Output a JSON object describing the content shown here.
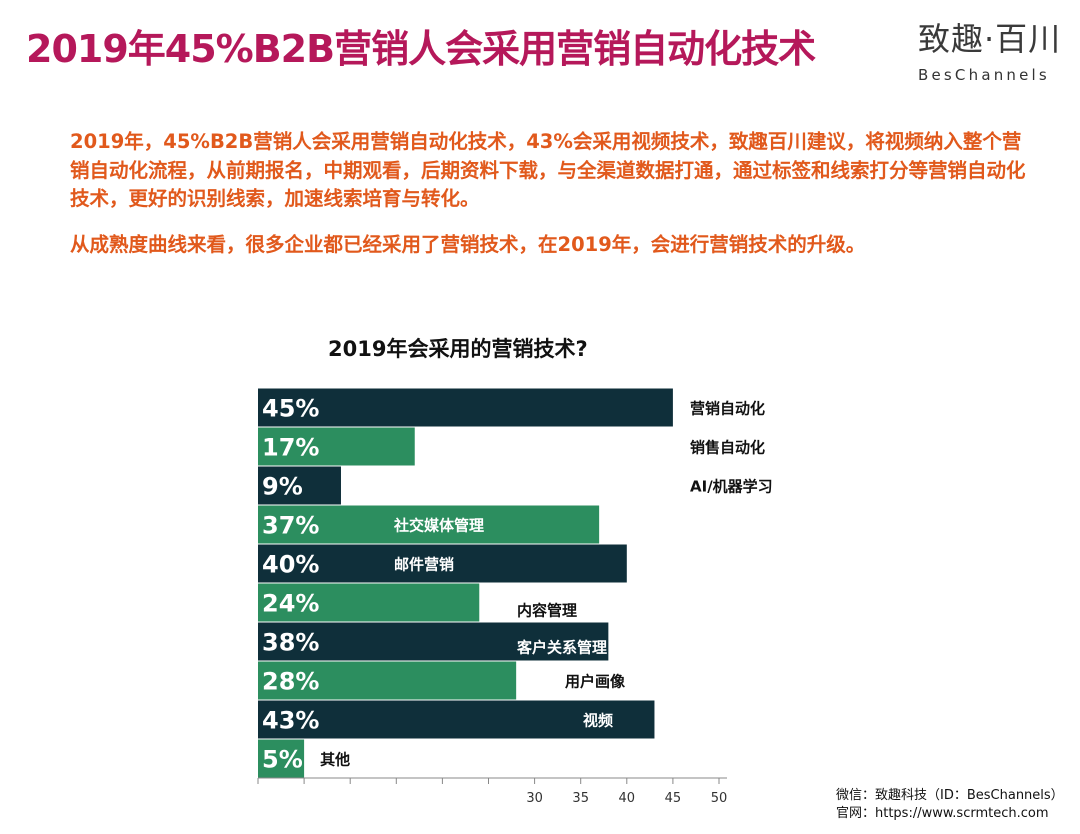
{
  "slide": {
    "title": "2019年45%B2B营销人会采用营销自动化技术",
    "logo_cn": "致趣·百川",
    "logo_en": "BesChannels",
    "paragraph1": "2019年，45%B2B营销人会采用营销自动化技术，43%会采用视频技术，致趣百川建议，将视频纳入整个营销自动化流程，从前期报名，中期观看，后期资料下载，与全渠道数据打通，通过标签和线索打分等营销自动化技术，更好的识别线索，加速线索培育与转化。",
    "paragraph2": "从成熟度曲线来看，很多企业都已经采用了营销技术，在2019年，会进行营销技术的升级。",
    "footer_wechat": "微信：致趣科技（ID：BesChannels）",
    "footer_site": "官网：https://www.scrmtech.com"
  },
  "colors": {
    "title": "#b5185a",
    "paragraph": "#e1591c",
    "bar_dark": "#0f2f3a",
    "bar_green": "#2c8e5f"
  },
  "chart_data": {
    "type": "bar",
    "orientation": "horizontal",
    "title": "2019年会采用的营销技术?",
    "categories": [
      "营销自动化",
      "销售自动化",
      "AI/机器学习",
      "社交媒体管理",
      "邮件营销",
      "内容管理",
      "客户关系管理",
      "用户画像",
      "视频",
      "其他"
    ],
    "values": [
      45,
      17,
      9,
      37,
      40,
      24,
      38,
      28,
      43,
      5
    ],
    "value_labels": [
      "45%",
      "17%",
      "9%",
      "37%",
      "40%",
      "24%",
      "38%",
      "28%",
      "43%",
      "5%"
    ],
    "bar_colors": [
      "#0f2f3a",
      "#2c8e5f",
      "#0f2f3a",
      "#2c8e5f",
      "#0f2f3a",
      "#2c8e5f",
      "#0f2f3a",
      "#2c8e5f",
      "#0f2f3a",
      "#2c8e5f"
    ],
    "label_colors": [
      "#111111",
      "#111111",
      "#111111",
      "#ffffff",
      "#ffffff",
      "#111111",
      "#ffffff",
      "#111111",
      "#ffffff",
      "#111111"
    ],
    "xlim": [
      0,
      50
    ],
    "x_tick_values": [
      0,
      5,
      10,
      15,
      20,
      25,
      30,
      35,
      40,
      45,
      50
    ],
    "x_tick_labels": [
      "",
      "",
      "",
      "",
      "",
      "",
      "30",
      "35",
      "40",
      "45",
      "50"
    ],
    "grid": false
  }
}
